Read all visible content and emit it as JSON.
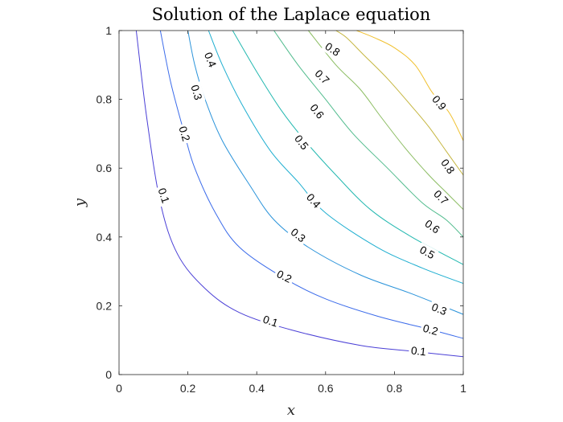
{
  "chart_data": {
    "type": "contour",
    "title": "Solution of the Laplace equation",
    "xlabel": "x",
    "ylabel": "y",
    "xlim": [
      0,
      1
    ],
    "ylim": [
      0,
      1
    ],
    "xticks": [
      "0",
      "0.2",
      "0.4",
      "0.6",
      "0.8",
      "1"
    ],
    "yticks": [
      "0",
      "0.2",
      "0.4",
      "0.6",
      "0.8",
      "1"
    ],
    "grid": false,
    "colormap": "parula",
    "levels": [
      {
        "value": 0.1,
        "label": "0.1",
        "color": "#4a3fd6",
        "points": [
          [
            0.05,
            1.0
          ],
          [
            0.08,
            0.75
          ],
          [
            0.12,
            0.5
          ],
          [
            0.17,
            0.35
          ],
          [
            0.25,
            0.25
          ],
          [
            0.35,
            0.18
          ],
          [
            0.5,
            0.13
          ],
          [
            0.7,
            0.085
          ],
          [
            0.85,
            0.068
          ],
          [
            1.0,
            0.052
          ]
        ],
        "labels": [
          {
            "x": 0.13,
            "y": 0.52
          },
          {
            "x": 0.44,
            "y": 0.155
          },
          {
            "x": 0.87,
            "y": 0.068
          }
        ]
      },
      {
        "value": 0.2,
        "label": "0.2",
        "color": "#3b6bea",
        "points": [
          [
            0.12,
            1.0
          ],
          [
            0.15,
            0.85
          ],
          [
            0.19,
            0.7
          ],
          [
            0.22,
            0.6
          ],
          [
            0.28,
            0.47
          ],
          [
            0.35,
            0.37
          ],
          [
            0.48,
            0.28
          ],
          [
            0.6,
            0.22
          ],
          [
            0.75,
            0.17
          ],
          [
            0.9,
            0.132
          ],
          [
            1.0,
            0.105
          ]
        ],
        "labels": [
          {
            "x": 0.19,
            "y": 0.7
          },
          {
            "x": 0.48,
            "y": 0.285
          },
          {
            "x": 0.905,
            "y": 0.13
          }
        ]
      },
      {
        "value": 0.3,
        "label": "0.3",
        "color": "#2a93da",
        "points": [
          [
            0.2,
            1.0
          ],
          [
            0.22,
            0.9
          ],
          [
            0.25,
            0.8
          ],
          [
            0.3,
            0.68
          ],
          [
            0.38,
            0.55
          ],
          [
            0.45,
            0.45
          ],
          [
            0.55,
            0.37
          ],
          [
            0.7,
            0.29
          ],
          [
            0.85,
            0.235
          ],
          [
            1.0,
            0.175
          ]
        ],
        "labels": [
          {
            "x": 0.225,
            "y": 0.82
          },
          {
            "x": 0.52,
            "y": 0.405
          },
          {
            "x": 0.93,
            "y": 0.19
          }
        ]
      },
      {
        "value": 0.4,
        "label": "0.4",
        "color": "#1eaed0",
        "points": [
          [
            0.26,
            1.0
          ],
          [
            0.3,
            0.9
          ],
          [
            0.36,
            0.78
          ],
          [
            0.44,
            0.65
          ],
          [
            0.52,
            0.56
          ],
          [
            0.6,
            0.47
          ],
          [
            0.75,
            0.37
          ],
          [
            0.88,
            0.31
          ],
          [
            1.0,
            0.265
          ]
        ],
        "labels": [
          {
            "x": 0.265,
            "y": 0.915
          },
          {
            "x": 0.565,
            "y": 0.505
          }
        ]
      },
      {
        "value": 0.5,
        "label": "0.5",
        "color": "#23b8b0",
        "points": [
          [
            0.33,
            1.0
          ],
          [
            0.4,
            0.88
          ],
          [
            0.47,
            0.77
          ],
          [
            0.54,
            0.68
          ],
          [
            0.63,
            0.58
          ],
          [
            0.73,
            0.48
          ],
          [
            0.85,
            0.4
          ],
          [
            1.0,
            0.32
          ]
        ],
        "labels": [
          {
            "x": 0.53,
            "y": 0.675
          },
          {
            "x": 0.895,
            "y": 0.355
          }
        ]
      },
      {
        "value": 0.6,
        "label": "0.6",
        "color": "#52bc8e",
        "points": [
          [
            0.45,
            1.0
          ],
          [
            0.52,
            0.9
          ],
          [
            0.6,
            0.8
          ],
          [
            0.68,
            0.7
          ],
          [
            0.78,
            0.6
          ],
          [
            0.88,
            0.5
          ],
          [
            0.95,
            0.45
          ],
          [
            1.0,
            0.4
          ]
        ],
        "labels": [
          {
            "x": 0.575,
            "y": 0.765
          },
          {
            "x": 0.91,
            "y": 0.43
          }
        ]
      },
      {
        "value": 0.7,
        "label": "0.7",
        "color": "#8cbd63",
        "points": [
          [
            0.55,
            1.0
          ],
          [
            0.63,
            0.9
          ],
          [
            0.7,
            0.83
          ],
          [
            0.76,
            0.75
          ],
          [
            0.83,
            0.66
          ],
          [
            0.9,
            0.58
          ],
          [
            0.95,
            0.53
          ],
          [
            1.0,
            0.48
          ]
        ],
        "labels": [
          {
            "x": 0.59,
            "y": 0.865
          },
          {
            "x": 0.935,
            "y": 0.515
          }
        ]
      },
      {
        "value": 0.8,
        "label": "0.8",
        "color": "#c5b640",
        "points": [
          [
            0.63,
            1.0
          ],
          [
            0.66,
            0.98
          ],
          [
            0.71,
            0.93
          ],
          [
            0.78,
            0.86
          ],
          [
            0.85,
            0.78
          ],
          [
            0.9,
            0.72
          ],
          [
            0.95,
            0.65
          ],
          [
            1.0,
            0.58
          ]
        ],
        "labels": [
          {
            "x": 0.62,
            "y": 0.945
          },
          {
            "x": 0.955,
            "y": 0.605
          }
        ]
      },
      {
        "value": 0.9,
        "label": "0.9",
        "color": "#f0c02e",
        "points": [
          [
            0.69,
            1.0
          ],
          [
            0.74,
            0.98
          ],
          [
            0.8,
            0.95
          ],
          [
            0.86,
            0.9
          ],
          [
            0.91,
            0.82
          ],
          [
            0.96,
            0.76
          ],
          [
            1.0,
            0.68
          ]
        ],
        "labels": [
          {
            "x": 0.93,
            "y": 0.79
          }
        ]
      }
    ]
  }
}
